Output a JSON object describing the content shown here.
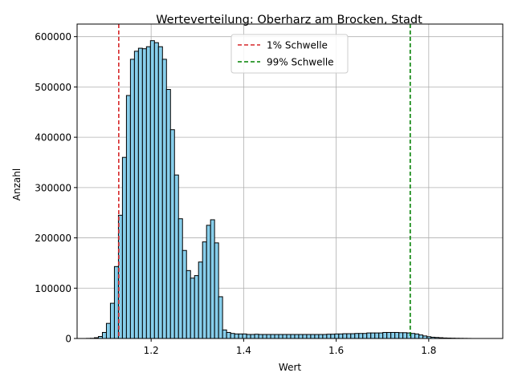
{
  "chart_data": {
    "type": "bar",
    "title": "Werteverteilung: Oberharz am Brocken, Stadt",
    "xlabel": "Wert",
    "ylabel": "Anzahl",
    "xlim": [
      1.04,
      1.96
    ],
    "ylim": [
      0,
      625000
    ],
    "xticks": [
      1.2,
      1.4,
      1.6,
      1.8
    ],
    "xtick_labels": [
      "1.2",
      "1.4",
      "1.6",
      "1.8"
    ],
    "yticks": [
      0,
      100000,
      200000,
      300000,
      400000,
      500000,
      600000
    ],
    "ytick_labels": [
      "0",
      "100000",
      "200000",
      "300000",
      "400000",
      "500000",
      "600000"
    ],
    "grid": true,
    "bar_color": "#87CEEB",
    "bar_edge_color": "#000000",
    "bin_start": 1.06,
    "bin_width": 0.00866,
    "values": [
      200,
      400,
      1500,
      4000,
      12000,
      30000,
      70000,
      143000,
      245000,
      360000,
      483000,
      555000,
      571000,
      577000,
      576000,
      580000,
      592000,
      588000,
      580000,
      555000,
      495000,
      415000,
      325000,
      238000,
      175000,
      135000,
      120000,
      125000,
      152000,
      192000,
      225000,
      236000,
      190000,
      83000,
      17000,
      12000,
      10000,
      9000,
      9000,
      9000,
      8000,
      8000,
      8500,
      8000,
      8000,
      8000,
      8000,
      8000,
      8000,
      8000,
      8000,
      8000,
      8000,
      8000,
      8000,
      8000,
      8000,
      8000,
      8000,
      8000,
      8500,
      8500,
      9000,
      9000,
      9500,
      9500,
      9500,
      10000,
      10000,
      10000,
      11000,
      11000,
      11000,
      11000,
      12000,
      12000,
      12000,
      12000,
      11500,
      11500,
      11000,
      10000,
      9000,
      7000,
      5000,
      3500,
      2500,
      2000,
      1500,
      1000,
      800,
      600,
      400,
      300,
      200,
      100
    ],
    "threshold_lines": [
      {
        "name": "1% Schwelle",
        "x": 1.13,
        "color": "#d62728"
      },
      {
        "name": "99% Schwelle",
        "x": 1.76,
        "color": "#008000"
      }
    ],
    "legend_position": "top-center"
  }
}
